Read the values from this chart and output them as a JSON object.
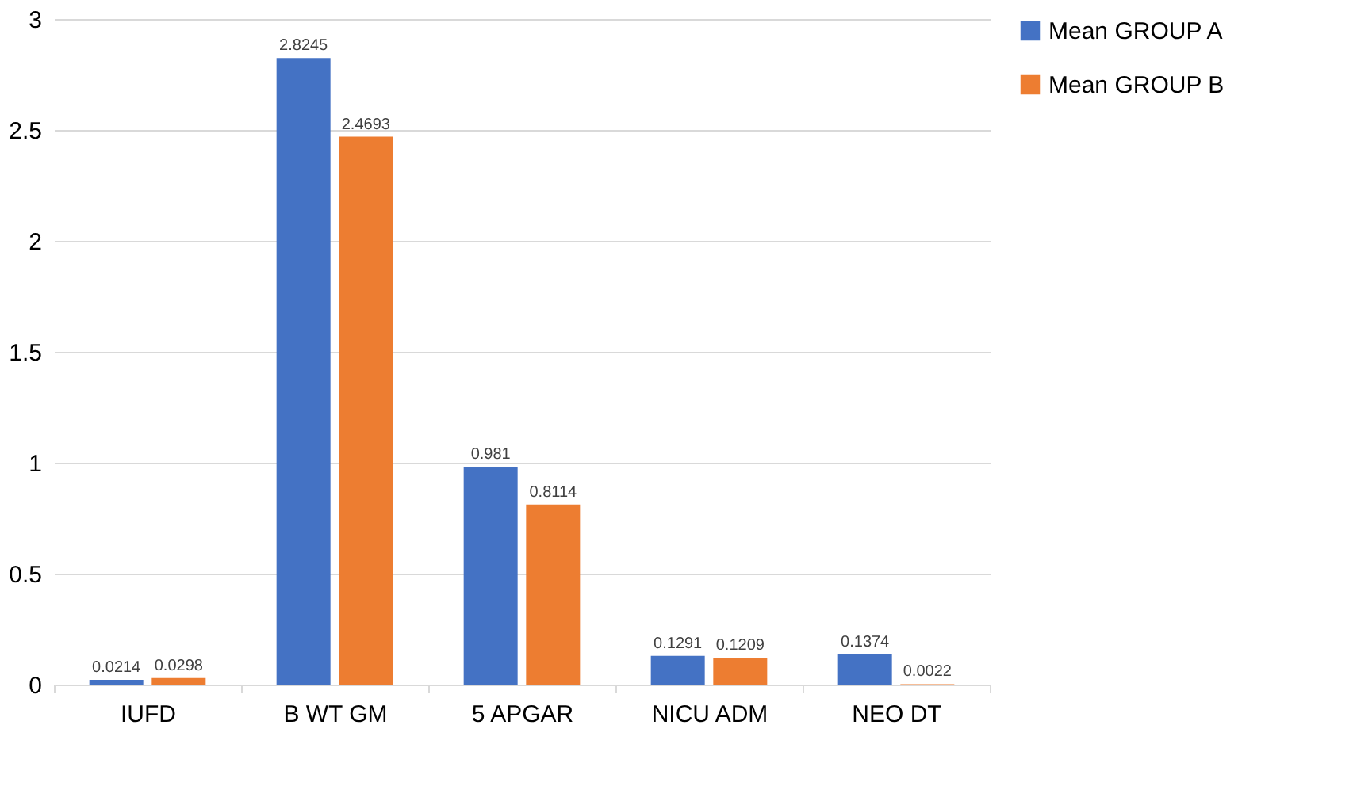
{
  "chart_data": {
    "type": "bar",
    "categories": [
      "IUFD",
      "B WT GM",
      "5 APGAR",
      "NICU ADM",
      "NEO DT"
    ],
    "series": [
      {
        "name": "Mean GROUP A",
        "color": "#4472c4",
        "values": [
          0.0214,
          2.8245,
          0.981,
          0.1291,
          0.1374
        ]
      },
      {
        "name": "Mean GROUP B",
        "color": "#ed7d31",
        "values": [
          0.0298,
          2.4693,
          0.8114,
          0.1209,
          0.0022
        ]
      }
    ],
    "ylim": [
      0,
      3
    ],
    "yticks": [
      0,
      0.5,
      1,
      1.5,
      2,
      2.5,
      3
    ],
    "grid": "y",
    "legend": "right",
    "data_labels": true
  }
}
